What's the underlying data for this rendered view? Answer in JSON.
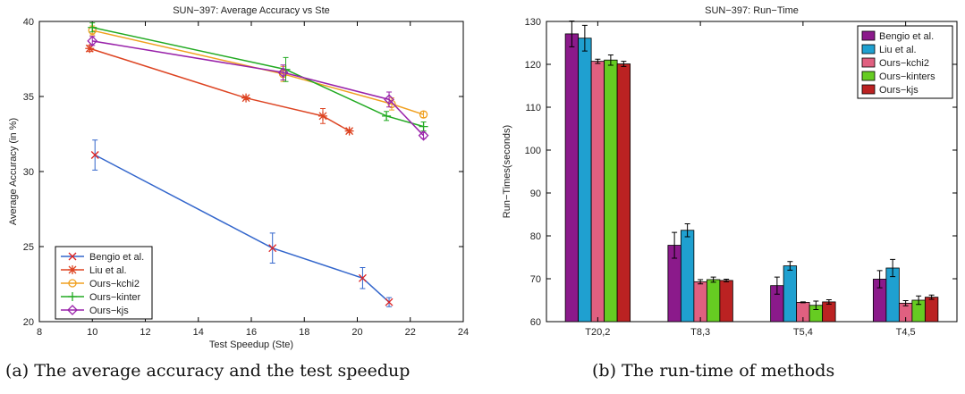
{
  "captions": {
    "a": "(a) The average accuracy and the test speedup",
    "b": "(b) The run-time of methods"
  },
  "chart_data": [
    {
      "type": "line",
      "title": "SUN−397: Average Accuracy vs Ste",
      "xlabel": "Test Speedup (Ste)",
      "ylabel": "Average Accuracy (in %)",
      "xlim": [
        8,
        24
      ],
      "ylim": [
        20,
        40
      ],
      "xticks": [
        8,
        10,
        12,
        14,
        16,
        18,
        20,
        22,
        24
      ],
      "yticks": [
        20,
        25,
        30,
        35,
        40
      ],
      "grid": false,
      "legend_position": "bottom-left",
      "series": [
        {
          "name": "Bengio et al.",
          "color": "#3366cc",
          "marker": "x",
          "x": [
            10.1,
            16.8,
            20.2,
            21.2
          ],
          "y": [
            31.1,
            24.9,
            22.9,
            21.3
          ],
          "err": [
            1.0,
            1.0,
            0.7,
            0.3
          ]
        },
        {
          "name": "Liu et al.",
          "color": "#dd4422",
          "marker": "asterisk",
          "x": [
            9.9,
            15.8,
            18.7,
            19.7
          ],
          "y": [
            38.2,
            34.9,
            33.7,
            32.7
          ],
          "err": [
            0.2,
            0.1,
            0.5,
            0.1
          ]
        },
        {
          "name": "Ours−kchi2",
          "color": "#f0a020",
          "marker": "circle",
          "x": [
            10.0,
            17.2,
            21.3,
            22.5
          ],
          "y": [
            39.4,
            36.5,
            34.5,
            33.8
          ],
          "err": [
            0.3,
            0.5,
            0.4,
            0.2
          ]
        },
        {
          "name": "Ours−kinter",
          "color": "#22aa22",
          "marker": "plus",
          "x": [
            10.0,
            17.3,
            21.1,
            22.5
          ],
          "y": [
            39.6,
            36.8,
            33.7,
            33.0
          ],
          "err": [
            0.3,
            0.8,
            0.3,
            0.3
          ]
        },
        {
          "name": "Ours−kjs",
          "color": "#9922aa",
          "marker": "diamond",
          "x": [
            10.0,
            17.2,
            21.2,
            22.5
          ],
          "y": [
            38.7,
            36.6,
            34.8,
            32.4
          ],
          "err": [
            0.3,
            0.5,
            0.5,
            0.2
          ]
        }
      ]
    },
    {
      "type": "bar",
      "title": "SUN−397: Run−Time",
      "xlabel": "",
      "ylabel": "Run−Times(seconds)",
      "ylim": [
        60,
        130
      ],
      "yticks": [
        60,
        70,
        80,
        90,
        100,
        110,
        120,
        130
      ],
      "grid": false,
      "legend_position": "top-right",
      "categories": [
        "T20,2",
        "T8,3",
        "T5,4",
        "T4,5"
      ],
      "series": [
        {
          "name": "Bengio et al.",
          "color": "#8b1a8b",
          "values": [
            127.1,
            77.8,
            68.4,
            69.9
          ],
          "err": [
            3.0,
            3.0,
            2.0,
            2.0
          ]
        },
        {
          "name": "Liu et al.",
          "color": "#1fa0d0",
          "values": [
            126.1,
            81.3,
            73.0,
            72.5
          ],
          "err": [
            3.0,
            1.5,
            1.0,
            2.0
          ]
        },
        {
          "name": "Ours−kchi2",
          "color": "#e06080",
          "values": [
            120.7,
            69.3,
            64.5,
            64.3
          ],
          "err": [
            0.5,
            0.5,
            0.1,
            0.6
          ]
        },
        {
          "name": "Ours−kinters",
          "color": "#66cc22",
          "values": [
            121.0,
            69.8,
            63.8,
            65.0
          ],
          "err": [
            1.2,
            0.6,
            1.0,
            1.0
          ]
        },
        {
          "name": "Ours−kjs",
          "color": "#bb2222",
          "values": [
            120.1,
            69.6,
            64.6,
            65.7
          ],
          "err": [
            0.6,
            0.3,
            0.5,
            0.5
          ]
        }
      ]
    }
  ]
}
